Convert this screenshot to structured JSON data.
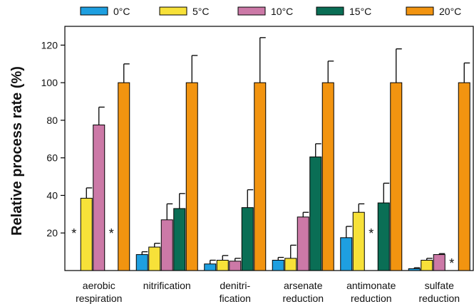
{
  "chart_data": {
    "type": "bar",
    "title": "",
    "xlabel": "",
    "ylabel": "Relative process rate (%)",
    "ylim": [
      0,
      130
    ],
    "yticks": [
      20,
      40,
      60,
      80,
      100,
      120
    ],
    "legend_position": "top",
    "categories": [
      [
        "aerobic",
        "respiration"
      ],
      [
        "nitrification"
      ],
      [
        "denitri-",
        "fication"
      ],
      [
        "arsenate",
        "reduction"
      ],
      [
        "antimonate",
        "reduction"
      ],
      [
        "sulfate",
        "reduction"
      ]
    ],
    "series": [
      {
        "name": "0°C",
        "color": "#1e9fe0",
        "values": [
          null,
          8.5,
          3.5,
          5.5,
          17.5,
          1
        ],
        "errors": [
          null,
          1.5,
          2,
          1.5,
          6,
          0.5
        ]
      },
      {
        "name": "5°C",
        "color": "#f7e139",
        "values": [
          38.5,
          12.5,
          5.5,
          6.5,
          31,
          5.5
        ],
        "errors": [
          5.5,
          2,
          2.5,
          7,
          4.5,
          1
        ]
      },
      {
        "name": "10°C",
        "color": "#cc79a7",
        "values": [
          77.5,
          27,
          5,
          28.5,
          null,
          8.5
        ],
        "errors": [
          9.5,
          8.5,
          1.5,
          2.5,
          null,
          0.5
        ]
      },
      {
        "name": "15°C",
        "color": "#0a6e55",
        "values": [
          null,
          33,
          33.5,
          60.5,
          36,
          null
        ],
        "errors": [
          null,
          8,
          9.5,
          7,
          10.5,
          null
        ]
      },
      {
        "name": "20°C",
        "color": "#f29410",
        "values": [
          100,
          100,
          100,
          100,
          100,
          100
        ],
        "errors": [
          10,
          14.5,
          24,
          11.5,
          18,
          10.5
        ]
      }
    ],
    "annotations": [
      {
        "text": "*",
        "category": 0,
        "series": 0
      },
      {
        "text": "*",
        "category": 0,
        "series": 3
      },
      {
        "text": "*",
        "category": 4,
        "series": 2
      },
      {
        "text": "*",
        "category": 5,
        "series": 3
      }
    ]
  }
}
